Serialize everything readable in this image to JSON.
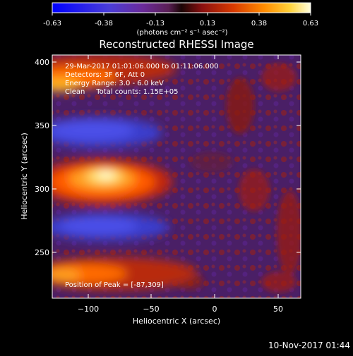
{
  "colorbar": {
    "ticks": [
      "-0.63",
      "-0.38",
      "-0.13",
      "0.13",
      "0.38",
      "0.63"
    ],
    "units": "(photons cm⁻² s⁻¹ asec⁻²)",
    "colors": [
      "#0000ff",
      "#4040ff",
      "#6a2a9a",
      "#8a2f80",
      "#2a0a0a",
      "#8a1010",
      "#d83a00",
      "#ff8c00",
      "#ffd23a",
      "#ffffc8"
    ]
  },
  "title": "Reconstructed RHESSI Image",
  "info_lines": [
    "29-Mar-2017 01:01:06.000 to 01:11:06.000",
    "Detectors: 3F 6F, Att 0",
    "Energy Range: 3.0 - 6.0 keV",
    "Clean     Total counts: 1.15E+05"
  ],
  "peak_label": "Position of Peak = [-87,309]",
  "axes": {
    "xlabel": "Heliocentric X (arcsec)",
    "ylabel": "Heliocentric Y (arcsec)",
    "xticks": [
      "−100",
      "−50",
      "0",
      "50"
    ],
    "yticks": [
      "400",
      "350",
      "300",
      "250"
    ]
  },
  "timestamp": "10-Nov-2017 01:44"
}
